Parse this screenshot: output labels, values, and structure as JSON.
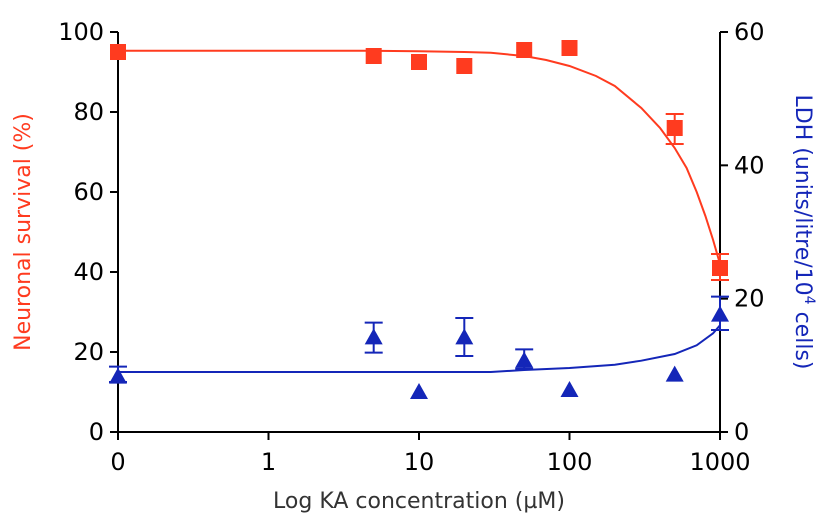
{
  "chart_data": {
    "type": "scatter",
    "x_axis": {
      "label": "Log KA concentration (µM)",
      "scale": "log",
      "tick_values": [
        0.1,
        1,
        10,
        100,
        1000
      ],
      "tick_labels": [
        "0",
        "1",
        "10",
        "100",
        "1000"
      ],
      "range": [
        0.1,
        1000
      ]
    },
    "y_axis_left": {
      "label": "Neuronal survival (%)",
      "range": [
        0,
        100
      ],
      "ticks": [
        0,
        20,
        40,
        60,
        80,
        100
      ],
      "color": "#ff3b1f"
    },
    "y_axis_right": {
      "label_main": "LDH (units/litre/10",
      "label_sup": "4",
      "label_tail": " cells)",
      "range": [
        0,
        60
      ],
      "ticks": [
        0,
        20,
        40,
        60
      ],
      "color": "#1426b8"
    },
    "grid": false,
    "series": [
      {
        "axis": "left",
        "marker": "square",
        "color": "#ff3b1f",
        "points": [
          {
            "x": 0.1,
            "y": 95
          },
          {
            "x": 5,
            "y": 94
          },
          {
            "x": 10,
            "y": 92.5
          },
          {
            "x": 20,
            "y": 91.5
          },
          {
            "x": 50,
            "y": 95.5
          },
          {
            "x": 100,
            "y": 96
          },
          {
            "x": 500,
            "y": 76,
            "err_low": 72,
            "err_high": 79.5
          },
          {
            "x": 1000,
            "y": 41,
            "err_low": 38,
            "err_high": 44.5
          }
        ],
        "fit_curve": [
          {
            "x": 0.1,
            "y": 95.3
          },
          {
            "x": 1,
            "y": 95.3
          },
          {
            "x": 5,
            "y": 95.3
          },
          {
            "x": 10,
            "y": 95.2
          },
          {
            "x": 20,
            "y": 95
          },
          {
            "x": 30,
            "y": 94.8
          },
          {
            "x": 50,
            "y": 94
          },
          {
            "x": 70,
            "y": 93
          },
          {
            "x": 100,
            "y": 91.5
          },
          {
            "x": 150,
            "y": 89
          },
          {
            "x": 200,
            "y": 86.5
          },
          {
            "x": 300,
            "y": 81
          },
          {
            "x": 400,
            "y": 76
          },
          {
            "x": 500,
            "y": 71
          },
          {
            "x": 600,
            "y": 66
          },
          {
            "x": 700,
            "y": 60
          },
          {
            "x": 800,
            "y": 54
          },
          {
            "x": 900,
            "y": 48
          },
          {
            "x": 1000,
            "y": 42
          }
        ]
      },
      {
        "axis": "right",
        "marker": "triangle",
        "color": "#1426b8",
        "points": [
          {
            "x": 0.1,
            "y": 8.3,
            "err_low": 7.5,
            "err_high": 9.8
          },
          {
            "x": 5,
            "y": 14.2,
            "err_low": 11.9,
            "err_high": 16.4
          },
          {
            "x": 10,
            "y": 6
          },
          {
            "x": 20,
            "y": 14.2,
            "err_low": 11.4,
            "err_high": 17.1
          },
          {
            "x": 50,
            "y": 10.7,
            "err_low": 9.5,
            "err_high": 12.4
          },
          {
            "x": 100,
            "y": 6.3
          },
          {
            "x": 500,
            "y": 8.6
          },
          {
            "x": 1000,
            "y": 17.6,
            "err_low": 15.3,
            "err_high": 20.3
          }
        ],
        "fit_curve": [
          {
            "x": 0.1,
            "y": 9
          },
          {
            "x": 1,
            "y": 9
          },
          {
            "x": 10,
            "y": 9
          },
          {
            "x": 30,
            "y": 9
          },
          {
            "x": 50,
            "y": 9.3
          },
          {
            "x": 100,
            "y": 9.6
          },
          {
            "x": 200,
            "y": 10.1
          },
          {
            "x": 300,
            "y": 10.7
          },
          {
            "x": 500,
            "y": 11.7
          },
          {
            "x": 700,
            "y": 13
          },
          {
            "x": 900,
            "y": 14.8
          },
          {
            "x": 1000,
            "y": 16
          }
        ]
      }
    ]
  }
}
